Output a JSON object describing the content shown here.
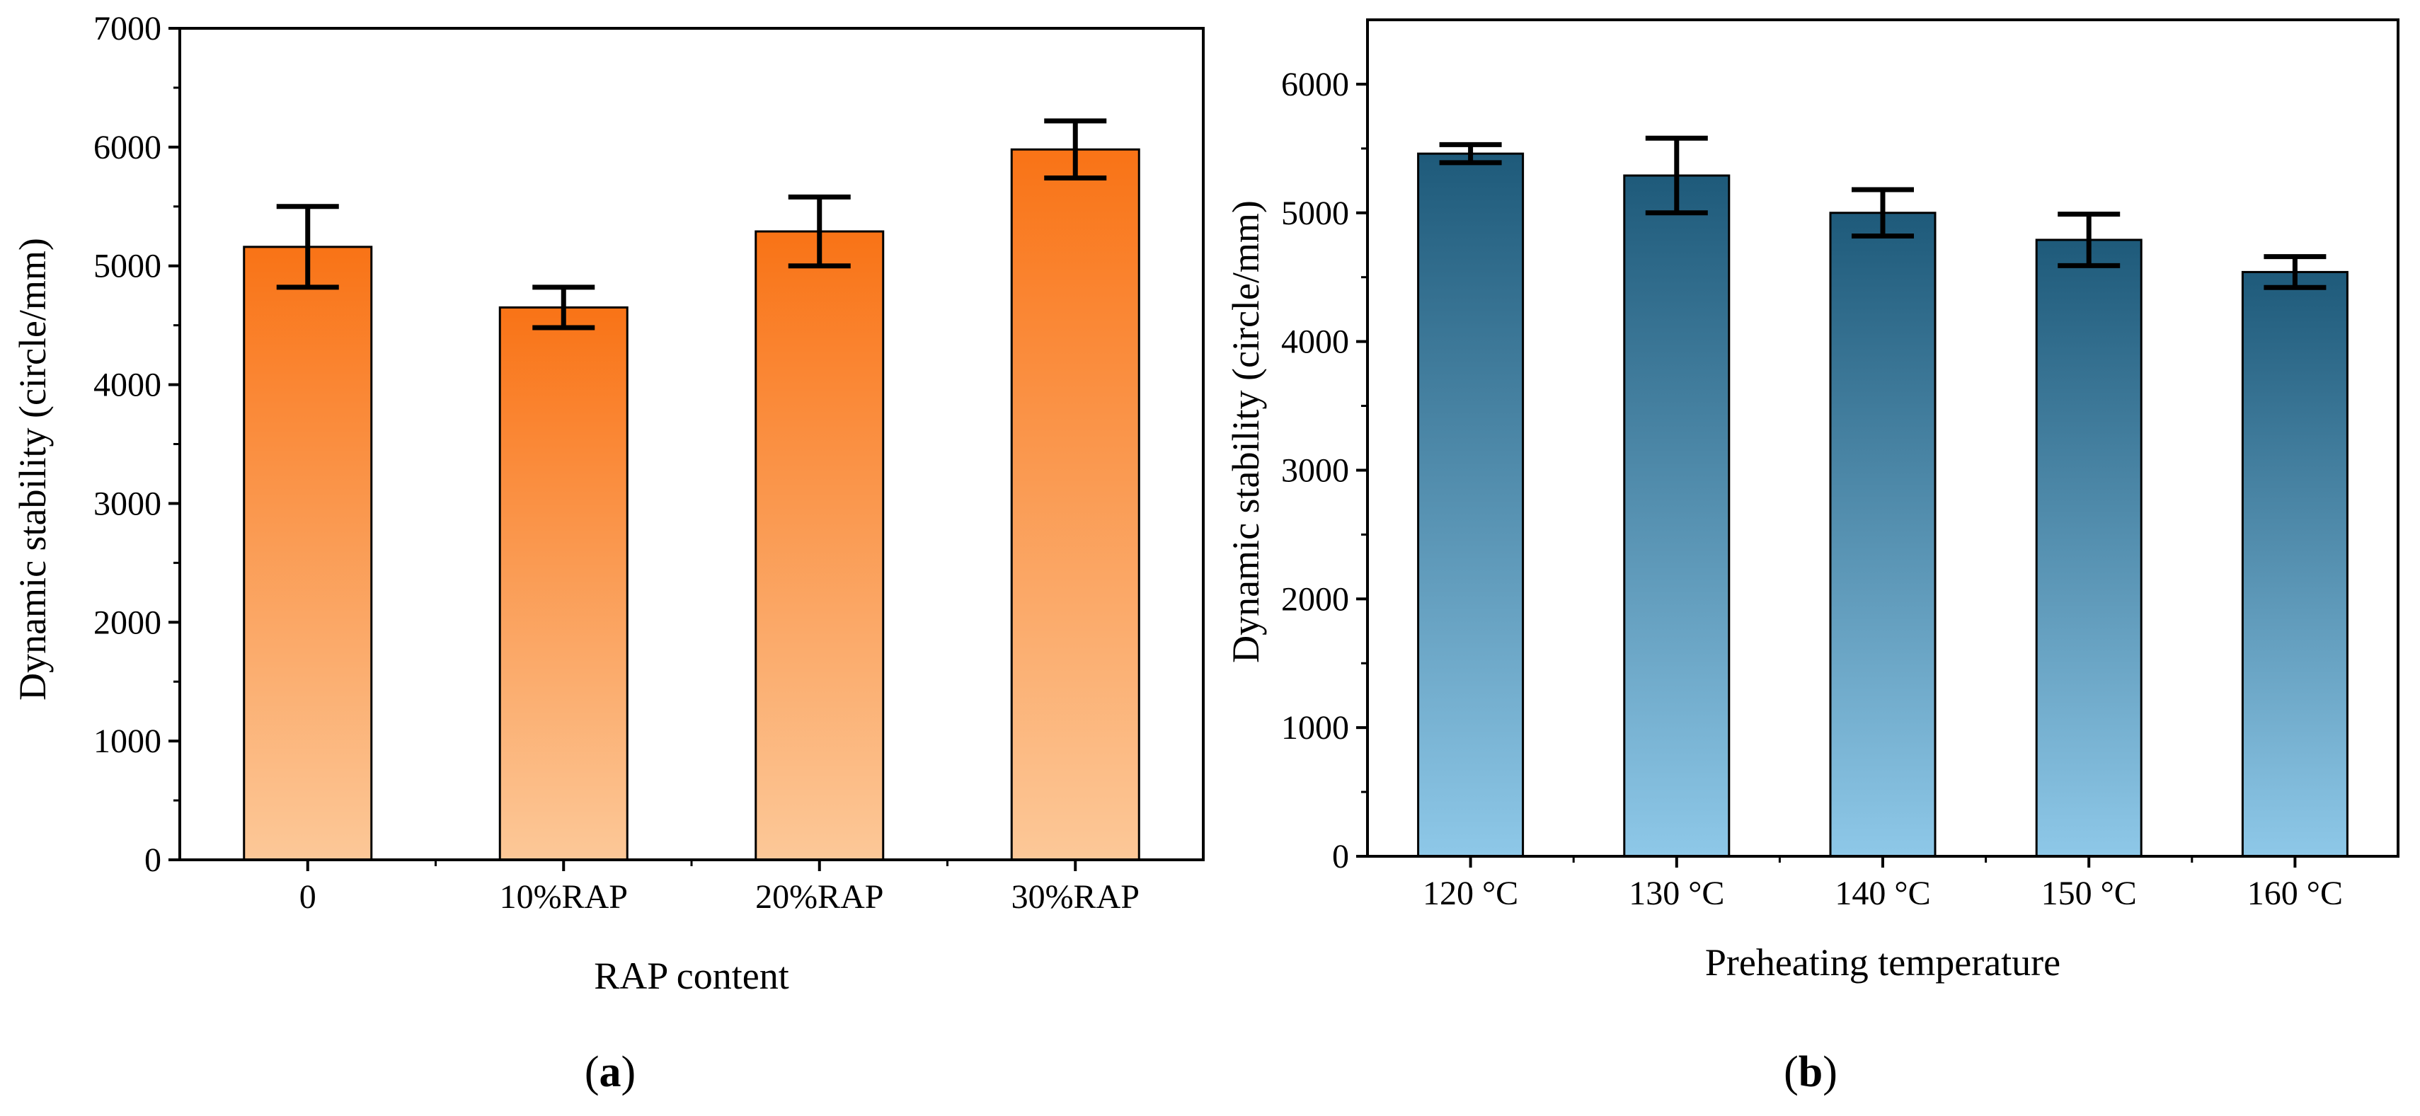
{
  "figure": {
    "panels": [
      {
        "open": "(",
        "letter": "a",
        "close": ")"
      },
      {
        "open": "(",
        "letter": "b",
        "close": ")"
      }
    ]
  },
  "chart_data": [
    {
      "type": "bar",
      "panel": "a",
      "title": "",
      "xlabel": "RAP content",
      "ylabel": "Dynamic stability (circle/mm)",
      "ylim": [
        0,
        7000
      ],
      "yticks": [
        0,
        1000,
        2000,
        3000,
        4000,
        5000,
        6000,
        7000
      ],
      "yticks_minor_step": 500,
      "grid": false,
      "categories": [
        "0",
        "10%RAP",
        "20%RAP",
        "30%RAP"
      ],
      "values": [
        5160,
        4650,
        5290,
        5980
      ],
      "error_low": [
        4820,
        4480,
        5000,
        5740
      ],
      "error_high": [
        5500,
        4820,
        5580,
        6220
      ],
      "colors": {
        "bar_top": "#f97316",
        "bar_bottom": "#fcc898",
        "stroke": "#000000"
      }
    },
    {
      "type": "bar",
      "panel": "b",
      "title": "",
      "xlabel": "Preheating temperature",
      "ylabel": "Dynamic stability (circle/mm)",
      "ylim": [
        0,
        6500
      ],
      "yticks": [
        0,
        1000,
        2000,
        3000,
        4000,
        5000,
        6000
      ],
      "yticks_minor_step": 500,
      "grid": false,
      "categories": [
        "120 °C",
        "130 °C",
        "140 °C",
        "150 °C",
        "160 °C"
      ],
      "values": [
        5460,
        5290,
        5000,
        4790,
        4540
      ],
      "error_low": [
        5390,
        5000,
        4820,
        4590,
        4420
      ],
      "error_high": [
        5530,
        5580,
        5180,
        4990,
        4660
      ],
      "colors": {
        "bar_top": "#1e5a7a",
        "bar_bottom": "#8ec8e8",
        "stroke": "#000000"
      }
    }
  ]
}
